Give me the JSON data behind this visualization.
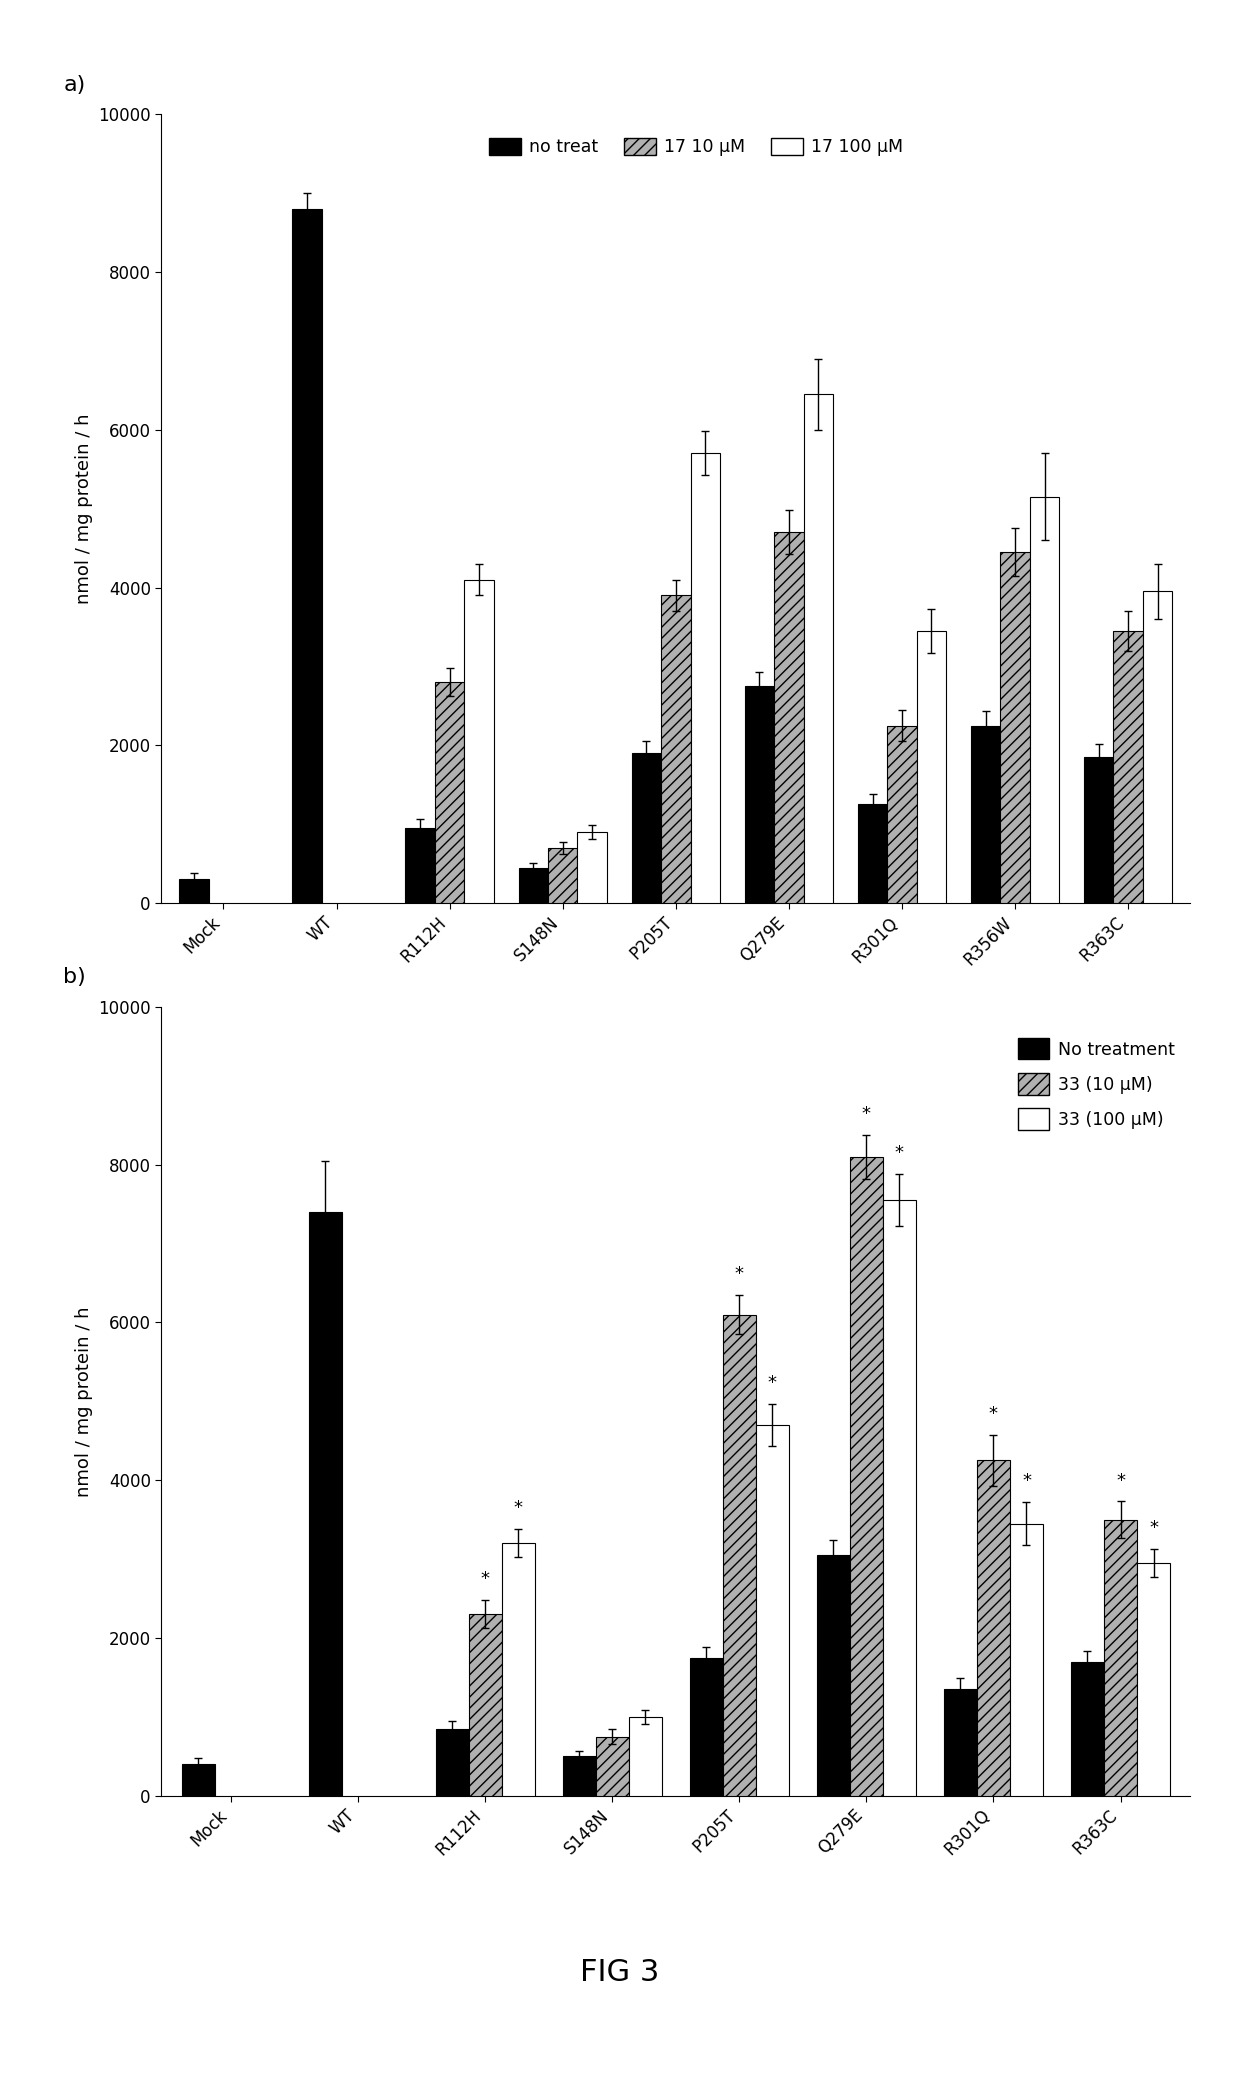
{
  "panel_a": {
    "categories": [
      "Mock",
      "WT",
      "R112H",
      "S148N",
      "P205T",
      "Q279E",
      "R301Q",
      "R356W",
      "R363C"
    ],
    "no_treat": [
      300,
      8800,
      950,
      450,
      1900,
      2750,
      1250,
      2250,
      1850
    ],
    "no_treat_err": [
      80,
      200,
      120,
      60,
      150,
      180,
      130,
      180,
      160
    ],
    "treat_10": [
      null,
      null,
      2800,
      700,
      3900,
      4700,
      2250,
      4450,
      3450
    ],
    "treat_10_err": [
      null,
      null,
      180,
      80,
      200,
      280,
      200,
      300,
      250
    ],
    "treat_100": [
      null,
      null,
      4100,
      900,
      5700,
      6450,
      3450,
      5150,
      3950
    ],
    "treat_100_err": [
      null,
      null,
      200,
      90,
      280,
      450,
      280,
      550,
      350
    ],
    "ylabel": "nmol / mg protein / h",
    "ylim": [
      0,
      10000
    ],
    "yticks": [
      0,
      2000,
      4000,
      6000,
      8000,
      10000
    ],
    "legend_labels": [
      "no treat",
      "17 10 μM",
      "17 100 μM"
    ],
    "panel_label": "a)"
  },
  "panel_b": {
    "categories": [
      "Mock",
      "WT",
      "R112H",
      "S148N",
      "P205T",
      "Q279E",
      "R301Q",
      "R363C"
    ],
    "no_treat": [
      400,
      7400,
      850,
      500,
      1750,
      3050,
      1350,
      1700
    ],
    "no_treat_err": [
      80,
      650,
      100,
      70,
      140,
      190,
      140,
      140
    ],
    "treat_10": [
      null,
      null,
      2300,
      750,
      6100,
      8100,
      4250,
      3500
    ],
    "treat_10_err": [
      null,
      null,
      180,
      90,
      250,
      280,
      320,
      230
    ],
    "treat_100": [
      null,
      null,
      3200,
      1000,
      4700,
      7550,
      3450,
      2950
    ],
    "treat_100_err": [
      null,
      null,
      180,
      90,
      270,
      330,
      270,
      180
    ],
    "ylabel": "nmol / mg protein / h",
    "ylim": [
      0,
      10000
    ],
    "yticks": [
      0,
      2000,
      4000,
      6000,
      8000,
      10000
    ],
    "legend_labels": [
      "No treatment",
      "33 (10 μM)",
      "33 (100 μM)"
    ],
    "asterisk_10": [
      false,
      false,
      true,
      false,
      true,
      true,
      true,
      true
    ],
    "asterisk_100": [
      false,
      false,
      true,
      false,
      true,
      true,
      true,
      true
    ],
    "panel_label": "b)"
  },
  "fig_label": "FIG 3"
}
